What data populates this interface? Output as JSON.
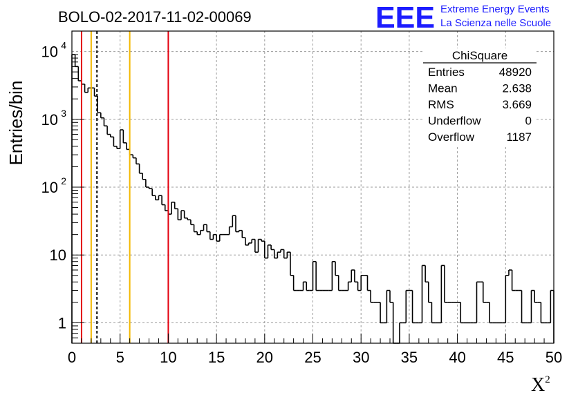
{
  "chart_data": {
    "type": "bar",
    "title": "BOLO-02-2017-11-02-00069",
    "xlabel": "X",
    "xlabel_superscript": "2",
    "ylabel": "Entries/bin",
    "xlim": [
      0,
      50
    ],
    "ylim": [
      0.5,
      20000
    ],
    "yscale": "log",
    "grid": true,
    "bin_width": 1,
    "x_ticks": [
      "0",
      "5",
      "10",
      "15",
      "20",
      "25",
      "30",
      "35",
      "40",
      "45",
      "50"
    ],
    "y_ticks": [
      {
        "base": "1",
        "exp": ""
      },
      {
        "base": "10",
        "exp": ""
      },
      {
        "base": "10",
        "exp": "2"
      },
      {
        "base": "10",
        "exp": "3"
      },
      {
        "base": "10",
        "exp": "4"
      }
    ],
    "values": [
      9000,
      6000,
      3700,
      3300,
      2500,
      2900,
      2900,
      2200,
      1250,
      1050,
      800,
      600,
      550,
      400,
      370,
      700,
      450,
      360,
      300,
      270,
      220,
      160,
      130,
      100,
      95,
      75,
      65,
      75,
      55,
      45,
      40,
      60,
      48,
      33,
      45,
      35,
      33,
      28,
      22,
      20,
      23,
      28,
      22,
      17,
      20,
      16,
      20,
      20,
      20,
      26,
      38,
      22,
      23,
      18,
      14,
      15,
      17,
      11,
      17,
      16,
      9,
      14,
      12,
      9,
      11,
      12,
      9,
      11,
      5,
      3,
      3,
      3,
      4,
      3,
      3,
      8,
      3,
      3,
      3,
      3,
      3,
      8,
      5,
      3,
      3,
      3,
      4,
      6,
      4,
      3,
      5,
      5,
      3,
      2,
      2,
      2,
      1,
      1,
      3,
      2,
      0,
      0,
      1,
      1,
      3,
      3,
      1,
      1,
      1,
      7,
      4,
      2,
      1,
      1,
      1,
      7,
      2,
      2,
      2,
      2,
      2,
      1,
      1,
      1,
      1,
      1,
      4,
      4,
      2,
      2,
      1,
      1,
      1,
      1,
      1,
      5,
      6,
      3,
      3,
      3,
      1,
      1,
      1,
      3,
      2,
      2,
      1,
      1,
      1,
      3
    ],
    "vertical_lines": [
      {
        "x": 1,
        "color": "#e3000f",
        "style": "solid"
      },
      {
        "x": 2,
        "color": "#f3b800",
        "style": "solid"
      },
      {
        "x": 2.6,
        "color": "#000000",
        "style": "dashed"
      },
      {
        "x": 6,
        "color": "#f3b800",
        "style": "solid"
      },
      {
        "x": 10,
        "color": "#e3000f",
        "style": "solid"
      }
    ],
    "stats_box": {
      "title": "ChiSquare",
      "rows": [
        {
          "label": "Entries",
          "value": "48920"
        },
        {
          "label": "Mean",
          "value": "2.638"
        },
        {
          "label": "RMS",
          "value": "3.669"
        },
        {
          "label": "Underflow",
          "value": "0"
        },
        {
          "label": "Overflow",
          "value": "1187"
        }
      ]
    }
  },
  "logo": {
    "letters": "EEE",
    "line1": "Extreme Energy Events",
    "line2": "La Scienza nelle Scuole",
    "color": "#1d1dff"
  }
}
